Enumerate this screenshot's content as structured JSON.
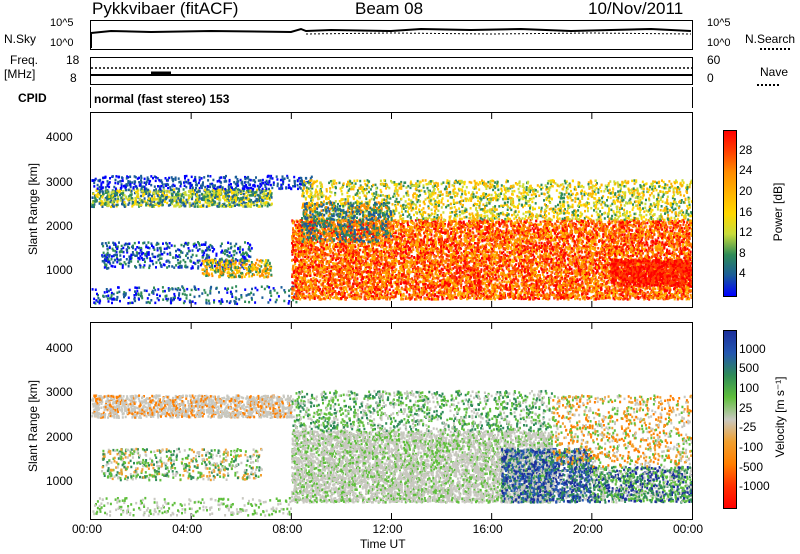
{
  "header": {
    "station": "Pykkvibaer (fitACF)",
    "beam": "Beam 08",
    "date": "10/Nov/2011"
  },
  "aux": {
    "nsky_label": "N.Sky",
    "nsky_ticks": [
      "10^5",
      "10^0"
    ],
    "nsearch_label": "N.Search",
    "nsearch_ticks": [
      "10^5",
      "10^0"
    ],
    "freq_label_1": "Freq.",
    "freq_label_2": "[MHz]",
    "freq_ticks": [
      "18",
      "8"
    ],
    "nave_label": "Nave",
    "nave_ticks": [
      "60",
      "0"
    ],
    "cpid_label": "CPID",
    "cpid_text": "normal (fast stereo) 153"
  },
  "chart_data": [
    {
      "type": "heatmap",
      "name": "power",
      "ylabel": "Slant Range [km]",
      "yticks": [
        "4000",
        "3000",
        "2000",
        "1000"
      ],
      "ylim": [
        200,
        4600
      ],
      "colorbar_label": "Power [dB]",
      "colorbar_ticks": [
        "28",
        "24",
        "20",
        "16",
        "12",
        "8",
        "4"
      ],
      "colorbar_colors": [
        "#ff0000",
        "#ff4000",
        "#ff8c00",
        "#ffb300",
        "#ffd700",
        "#c8dc3c",
        "#2e8b57",
        "#1a5c99",
        "#0000ff"
      ]
    },
    {
      "type": "heatmap",
      "name": "velocity",
      "ylabel": "Slant Range [km]",
      "yticks": [
        "4000",
        "3000",
        "2000",
        "1000"
      ],
      "ylim": [
        200,
        4600
      ],
      "colorbar_label": "Velocity [m s⁻¹]",
      "colorbar_ticks": [
        "1000",
        "500",
        "100",
        "25",
        "-25",
        "-100",
        "-500",
        "-1000"
      ],
      "colorbar_colors": [
        "#1c2f9c",
        "#2457b0",
        "#2e8b57",
        "#5fbf3c",
        "#c8c8c0",
        "#f0a030",
        "#ff7f00",
        "#ff3000",
        "#ff0000"
      ]
    }
  ],
  "xaxis": {
    "ticks": [
      "00:00",
      "04:00",
      "08:00",
      "12:00",
      "16:00",
      "20:00",
      "00:00"
    ],
    "label": "Time UT"
  }
}
